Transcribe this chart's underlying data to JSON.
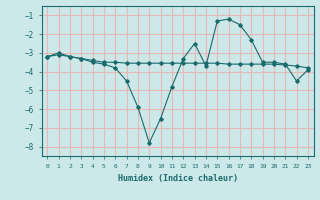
{
  "xlabel": "Humidex (Indice chaleur)",
  "ylabel": "",
  "background_color": "#cce8e8",
  "grid_color": "#e8b8b8",
  "line_color": "#1a6b6b",
  "xlim": [
    -0.5,
    23.5
  ],
  "ylim": [
    -8.5,
    -0.5
  ],
  "yticks": [
    -8,
    -7,
    -6,
    -5,
    -4,
    -3,
    -2,
    -1
  ],
  "xticks": [
    0,
    1,
    2,
    3,
    4,
    5,
    6,
    7,
    8,
    9,
    10,
    11,
    12,
    13,
    14,
    15,
    16,
    17,
    18,
    19,
    20,
    21,
    22,
    23
  ],
  "series1_x": [
    0,
    1,
    2,
    3,
    4,
    5,
    6,
    7,
    8,
    9,
    10,
    11,
    12,
    13,
    14,
    15,
    16,
    17,
    18,
    19,
    20,
    21,
    22,
    23
  ],
  "series1_y": [
    -3.2,
    -3.0,
    -3.2,
    -3.3,
    -3.5,
    -3.6,
    -3.8,
    -4.5,
    -5.9,
    -7.8,
    -6.5,
    -4.8,
    -3.3,
    -2.5,
    -3.7,
    -1.3,
    -1.2,
    -1.5,
    -2.3,
    -3.5,
    -3.5,
    -3.6,
    -4.5,
    -3.9
  ],
  "series2_x": [
    0,
    1,
    2,
    3,
    4,
    5,
    6,
    7,
    8,
    9,
    10,
    11,
    12,
    13,
    14,
    15,
    16,
    17,
    18,
    19,
    20,
    21,
    22,
    23
  ],
  "series2_y": [
    -3.2,
    -3.1,
    -3.2,
    -3.3,
    -3.4,
    -3.5,
    -3.5,
    -3.55,
    -3.55,
    -3.55,
    -3.55,
    -3.55,
    -3.55,
    -3.55,
    -3.55,
    -3.55,
    -3.6,
    -3.6,
    -3.6,
    -3.6,
    -3.6,
    -3.65,
    -3.7,
    -3.8
  ]
}
